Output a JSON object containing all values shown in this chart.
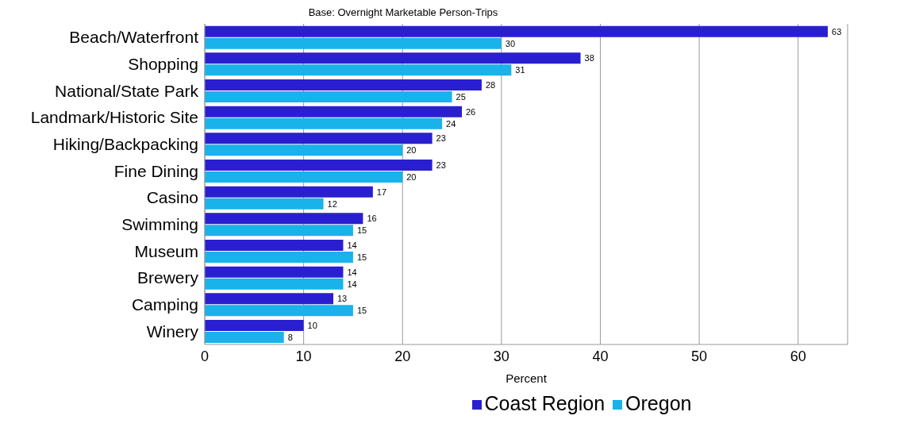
{
  "chart_data": {
    "type": "bar",
    "orientation": "horizontal",
    "title": "Base: Overnight Marketable Person-Trips",
    "xlabel": "Percent",
    "categories": [
      "Beach/Waterfront",
      "Shopping",
      "National/State Park",
      "Landmark/Historic Site",
      "Hiking/Backpacking",
      "Fine Dining",
      "Casino",
      "Swimming",
      "Museum",
      "Brewery",
      "Camping",
      "Winery"
    ],
    "series": [
      {
        "name": "Coast Region",
        "color": "#2a1fd0",
        "values": [
          63,
          38,
          28,
          26,
          23,
          23,
          17,
          16,
          14,
          14,
          13,
          10
        ]
      },
      {
        "name": "Oregon",
        "color": "#19b2ea",
        "values": [
          30,
          31,
          25,
          24,
          20,
          20,
          12,
          15,
          15,
          14,
          15,
          8
        ]
      }
    ],
    "xlim": [
      0,
      65
    ],
    "xticks": [
      0,
      10,
      20,
      30,
      40,
      50,
      60
    ],
    "grid": "x",
    "legend": "bottom",
    "data_labels": true
  }
}
